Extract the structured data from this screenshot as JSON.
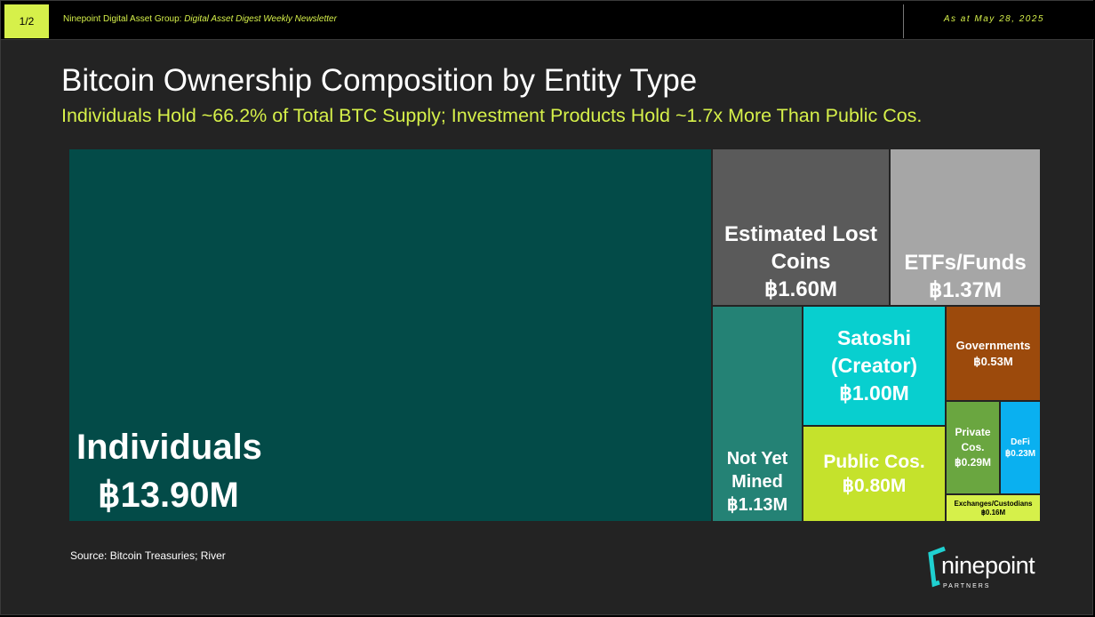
{
  "header": {
    "page_indicator": "1/2",
    "newsletter_prefix": "Ninepoint Digital Asset Group:",
    "newsletter_name": "Digital Asset Digest Weekly Newsletter",
    "as_at": "As at May 28, 2025"
  },
  "footer": {
    "source": "Source: Bitcoin Treasuries; River",
    "logo_text": "ninepoint",
    "logo_subtext": "PARTNERS"
  },
  "colors": {
    "accent": "#d6f04a",
    "logo_bracket": "#1fd0d0"
  },
  "chart_data": {
    "type": "treemap",
    "title": "Bitcoin Ownership Composition by Entity Type",
    "subtitle": "Individuals Hold ~66.2% of Total BTC Supply; Investment Products Hold ~1.7x More Than Public Cos.",
    "unit": "BTC (millions)",
    "items": [
      {
        "name": "Individuals",
        "value": 13.9,
        "label": "Individuals",
        "value_label": "฿13.90M",
        "color": "#034b48"
      },
      {
        "name": "Estimated Lost Coins",
        "value": 1.6,
        "label": "Estimated Lost Coins",
        "value_label": "฿1.60M",
        "color": "#5a5a5a"
      },
      {
        "name": "ETFs/Funds",
        "value": 1.37,
        "label": "ETFs/Funds",
        "value_label": "฿1.37M",
        "color": "#a6a6a6"
      },
      {
        "name": "Not Yet Mined",
        "value": 1.13,
        "label": "Not Yet Mined",
        "value_label": "฿1.13M",
        "color": "#248275"
      },
      {
        "name": "Satoshi (Creator)",
        "value": 1.0,
        "label": "Satoshi (Creator)",
        "value_label": "฿1.00M",
        "color": "#08cfcf"
      },
      {
        "name": "Public Cos.",
        "value": 0.8,
        "label": "Public Cos.",
        "value_label": "฿0.80M",
        "color": "#c5e22c"
      },
      {
        "name": "Governments",
        "value": 0.53,
        "label": "Governments",
        "value_label": "฿0.53M",
        "color": "#9c4a0c"
      },
      {
        "name": "Private Cos.",
        "value": 0.29,
        "label": "Private Cos.",
        "value_label": "฿0.29M",
        "color": "#6aa640"
      },
      {
        "name": "DeFi",
        "value": 0.23,
        "label": "DeFi",
        "value_label": "฿0.23M",
        "color": "#0ab0f0"
      },
      {
        "name": "Exchanges/Custodians",
        "value": 0.16,
        "label": "Exchanges/Custodians",
        "value_label": "฿0.16M",
        "color": "#d6f04a"
      }
    ]
  }
}
